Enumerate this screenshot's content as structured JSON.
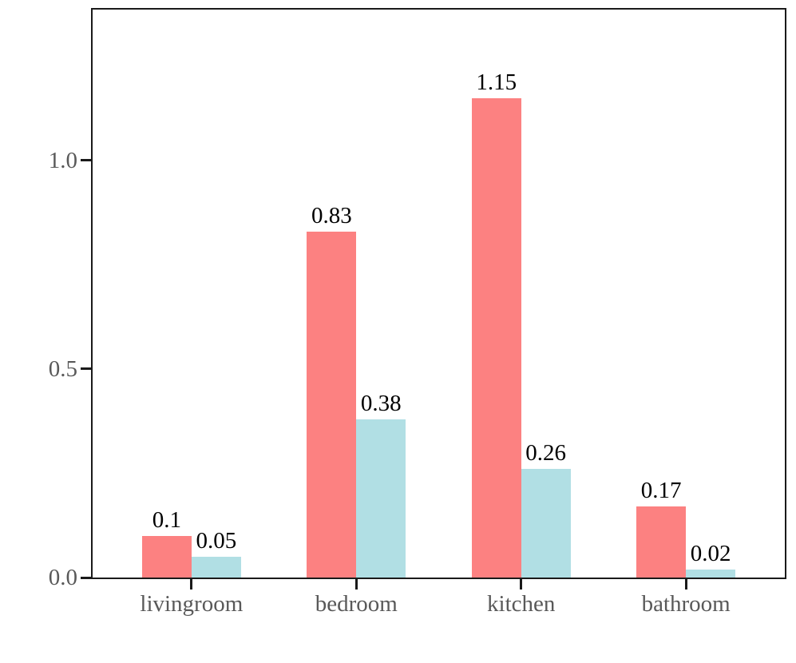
{
  "chart_data": {
    "type": "bar",
    "title": "",
    "xlabel": "",
    "ylabel": "",
    "categories": [
      "livingroom",
      "bedroom",
      "kitchen",
      "bathroom"
    ],
    "series": [
      {
        "name": "series_1",
        "color": "#FC8181",
        "values": [
          0.1,
          0.83,
          1.15,
          0.17
        ],
        "labels": [
          "0.1",
          "0.83",
          "1.15",
          "0.17"
        ]
      },
      {
        "name": "series_2",
        "color": "#B1DFE4",
        "values": [
          0.05,
          0.38,
          0.26,
          0.02
        ],
        "labels": [
          "0.05",
          "0.38",
          "0.26",
          "0.02"
        ]
      }
    ],
    "yticks": [
      {
        "value": 0.0,
        "label": "0.0"
      },
      {
        "value": 0.5,
        "label": "0.5"
      },
      {
        "value": 1.0,
        "label": "1.0"
      }
    ],
    "ylim": [
      0,
      1.362
    ],
    "xlim_units": [
      -0.6,
      3.6
    ],
    "bar_width_units": 0.3,
    "grid": false,
    "legend_position": "none",
    "colors": {
      "axis": "#1a1a1a",
      "tick_label": "#595959",
      "value_label": "#000000",
      "background": "#ffffff"
    }
  }
}
